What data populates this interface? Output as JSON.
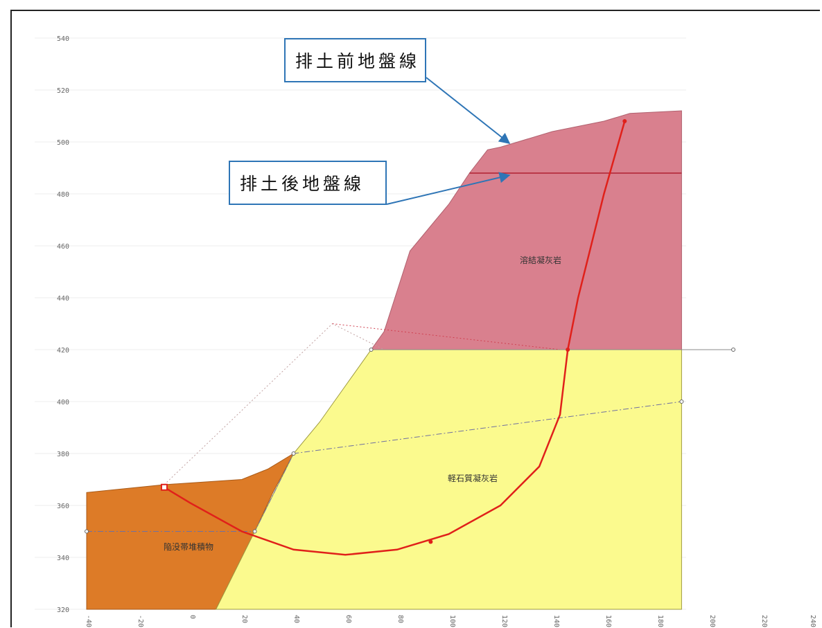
{
  "callouts": {
    "before": "排土前地盤線",
    "after": "排土後地盤線"
  },
  "layers": {
    "upper": "溶結凝灰岩",
    "middle": "軽石質凝灰岩",
    "lower": "陥没帯堆積物"
  },
  "axes": {
    "x_ticks": [
      "-40",
      "-20",
      "0",
      "20",
      "40",
      "60",
      "80",
      "100",
      "120",
      "140",
      "160",
      "180",
      "200",
      "220",
      "240"
    ],
    "y_ticks": [
      "540",
      "520",
      "500",
      "480",
      "460",
      "440",
      "420",
      "400",
      "380",
      "360",
      "340",
      "320"
    ]
  },
  "colors": {
    "upper": "#d9808e",
    "middle": "#fbfa8e",
    "lower": "#dd7b27",
    "slip_circle": "#e0201a",
    "callout_border": "#2e75b6",
    "arrow": "#2e75b6"
  },
  "chart_data": {
    "type": "cross-section",
    "xlim": [
      -40,
      240
    ],
    "ylim": [
      320,
      540
    ],
    "ground_before": [
      [
        -40,
        365
      ],
      [
        -10,
        368
      ],
      [
        20,
        370
      ],
      [
        30,
        374
      ],
      [
        40,
        380
      ],
      [
        50,
        392
      ],
      [
        60,
        406
      ],
      [
        70,
        419
      ],
      [
        75,
        427
      ],
      [
        85,
        458
      ],
      [
        95,
        470
      ],
      [
        100,
        476
      ],
      [
        108,
        488
      ],
      [
        115,
        497
      ],
      [
        120,
        498
      ],
      [
        140,
        504
      ],
      [
        160,
        508
      ],
      [
        170,
        511
      ],
      [
        190,
        512
      ]
    ],
    "ground_after": [
      [
        108,
        488
      ],
      [
        190,
        488
      ]
    ],
    "layer_boundary": [
      [
        70,
        420
      ],
      [
        190,
        420
      ]
    ],
    "slip_circle": [
      [
        -10,
        367
      ],
      [
        0,
        361
      ],
      [
        20,
        350
      ],
      [
        40,
        343
      ],
      [
        60,
        341
      ],
      [
        80,
        343
      ],
      [
        100,
        349
      ],
      [
        120,
        360
      ],
      [
        135,
        375
      ],
      [
        143,
        395
      ],
      [
        146,
        420
      ],
      [
        150,
        440
      ],
      [
        155,
        460
      ],
      [
        160,
        480
      ],
      [
        168,
        508
      ]
    ],
    "water_table": [
      [
        -40,
        350
      ],
      [
        25,
        350
      ],
      [
        40,
        380
      ],
      [
        190,
        400
      ]
    ]
  }
}
